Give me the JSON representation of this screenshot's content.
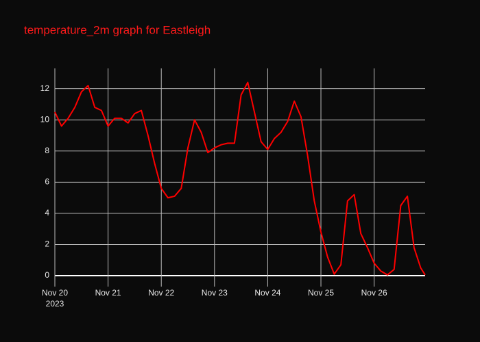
{
  "chart_data": {
    "type": "line",
    "title": "temperature_2m graph for Eastleigh",
    "x": [
      "2023-11-20T00:00",
      "2023-11-20T03:00",
      "2023-11-20T06:00",
      "2023-11-20T09:00",
      "2023-11-20T12:00",
      "2023-11-20T15:00",
      "2023-11-20T18:00",
      "2023-11-20T21:00",
      "2023-11-21T00:00",
      "2023-11-21T03:00",
      "2023-11-21T06:00",
      "2023-11-21T09:00",
      "2023-11-21T12:00",
      "2023-11-21T15:00",
      "2023-11-21T18:00",
      "2023-11-21T21:00",
      "2023-11-22T00:00",
      "2023-11-22T03:00",
      "2023-11-22T06:00",
      "2023-11-22T09:00",
      "2023-11-22T12:00",
      "2023-11-22T15:00",
      "2023-11-22T18:00",
      "2023-11-22T21:00",
      "2023-11-23T00:00",
      "2023-11-23T03:00",
      "2023-11-23T06:00",
      "2023-11-23T09:00",
      "2023-11-23T12:00",
      "2023-11-23T15:00",
      "2023-11-23T18:00",
      "2023-11-23T21:00",
      "2023-11-24T00:00",
      "2023-11-24T03:00",
      "2023-11-24T06:00",
      "2023-11-24T09:00",
      "2023-11-24T12:00",
      "2023-11-24T15:00",
      "2023-11-24T18:00",
      "2023-11-24T21:00",
      "2023-11-25T00:00",
      "2023-11-25T03:00",
      "2023-11-25T06:00",
      "2023-11-25T09:00",
      "2023-11-25T12:00",
      "2023-11-25T15:00",
      "2023-11-25T18:00",
      "2023-11-25T21:00",
      "2023-11-26T00:00",
      "2023-11-26T03:00",
      "2023-11-26T06:00",
      "2023-11-26T09:00",
      "2023-11-26T12:00",
      "2023-11-26T15:00",
      "2023-11-26T18:00",
      "2023-11-26T21:00",
      "2023-11-26T23:00"
    ],
    "series": [
      {
        "name": "temperature_2m",
        "color": "#ff0000",
        "values": [
          10.5,
          9.6,
          10.1,
          10.8,
          11.8,
          12.2,
          10.8,
          10.6,
          9.6,
          10.1,
          10.1,
          9.8,
          10.4,
          10.6,
          9.0,
          7.2,
          5.6,
          5.0,
          5.1,
          5.6,
          8.2,
          10.0,
          9.2,
          7.9,
          8.2,
          8.4,
          8.5,
          8.5,
          11.6,
          12.4,
          10.5,
          8.6,
          8.1,
          8.8,
          9.2,
          9.9,
          11.2,
          10.2,
          7.7,
          4.8,
          2.8,
          1.2,
          0.1,
          0.7,
          4.8,
          5.2,
          2.7,
          1.8,
          0.8,
          0.3,
          0.05,
          0.4,
          4.5,
          5.1,
          1.8,
          0.5,
          0.05
        ]
      }
    ],
    "xlim": [
      "2023-11-20T00:00",
      "2023-11-26T23:00"
    ],
    "xticks": [
      {
        "value": "2023-11-20T00:00",
        "label": "Nov 20"
      },
      {
        "value": "2023-11-21T00:00",
        "label": "Nov 21"
      },
      {
        "value": "2023-11-22T00:00",
        "label": "Nov 22"
      },
      {
        "value": "2023-11-23T00:00",
        "label": "Nov 23"
      },
      {
        "value": "2023-11-24T00:00",
        "label": "Nov 24"
      },
      {
        "value": "2023-11-25T00:00",
        "label": "Nov 25"
      },
      {
        "value": "2023-11-26T00:00",
        "label": "Nov 26"
      }
    ],
    "x_year_label": "2023",
    "ylim": [
      -0.7,
      13.3
    ],
    "yticks": [
      0,
      2,
      4,
      6,
      8,
      10,
      12
    ],
    "grid": true
  }
}
